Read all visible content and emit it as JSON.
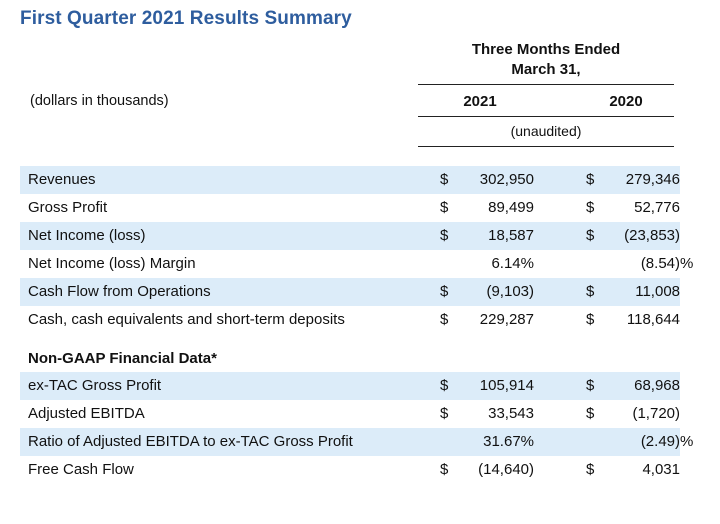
{
  "title": "First Quarter 2021 Results Summary",
  "header": {
    "period_line1": "Three Months Ended",
    "period_line2": "March 31,",
    "units": "(dollars in thousands)",
    "year1": "2021",
    "year2": "2020",
    "unaudited": "(unaudited)"
  },
  "gaap_rows": [
    {
      "label": "Revenues",
      "c1_dollar": "$",
      "c1": "302,950",
      "c2_dollar": "$",
      "c2": "279,346"
    },
    {
      "label": "Gross Profit",
      "c1_dollar": "$",
      "c1": "89,499",
      "c2_dollar": "$",
      "c2": "52,776"
    },
    {
      "label": "Net Income (loss)",
      "c1_dollar": "$",
      "c1": "18,587",
      "c2_dollar": "$",
      "c2": "(23,853)"
    },
    {
      "label": "Net Income (loss) Margin",
      "c1": "6.14%",
      "c2": "(8.54)",
      "c2_pct": "%"
    },
    {
      "label": "Cash Flow from Operations",
      "c1_dollar": "$",
      "c1": "(9,103)",
      "c2_dollar": "$",
      "c2": "11,008"
    },
    {
      "label": "Cash, cash equivalents and short-term deposits",
      "c1_dollar": "$",
      "c1": "229,287",
      "c2_dollar": "$",
      "c2": "118,644"
    }
  ],
  "non_gaap_title": "Non-GAAP Financial Data*",
  "non_gaap_rows": [
    {
      "label": "ex-TAC Gross Profit",
      "c1_dollar": "$",
      "c1": "105,914",
      "c2_dollar": "$",
      "c2": "68,968"
    },
    {
      "label": "Adjusted EBITDA",
      "c1_dollar": "$",
      "c1": "33,543",
      "c2_dollar": "$",
      "c2": "(1,720)"
    },
    {
      "label": "Ratio of Adjusted EBITDA to ex-TAC Gross Profit",
      "c1": "31.67%",
      "c2": "(2.49)",
      "c2_pct": "%"
    },
    {
      "label": "Free Cash Flow",
      "c1_dollar": "$",
      "c1": "(14,640)",
      "c2_dollar": "$",
      "c2": "4,031"
    }
  ]
}
